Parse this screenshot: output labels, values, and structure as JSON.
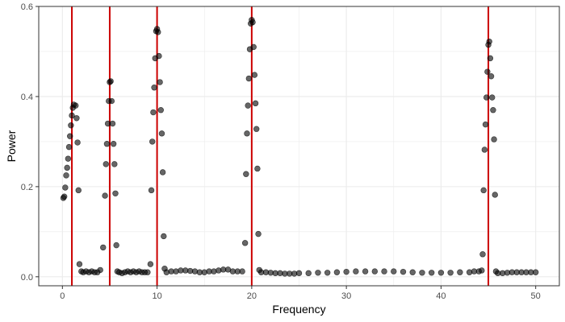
{
  "chart_data": {
    "type": "scatter",
    "title": "",
    "xlabel": "Frequency",
    "ylabel": "Power",
    "xlim": [
      -2.5,
      52.5
    ],
    "ylim": [
      -0.02,
      0.6
    ],
    "x_ticks": [
      0,
      10,
      20,
      30,
      40,
      50
    ],
    "y_ticks": [
      0.0,
      0.2,
      0.4,
      0.6
    ],
    "x_tick_labels": [
      "0",
      "10",
      "20",
      "30",
      "40",
      "50"
    ],
    "y_tick_labels": [
      "0.0",
      "0.2",
      "0.4",
      "0.6"
    ],
    "grid": true,
    "vlines": [
      1,
      5,
      10,
      20,
      45
    ],
    "vline_color": "#cc0000",
    "point_color": "#000000",
    "point_opacity": 0.6,
    "series": [
      {
        "x": [
          0.1,
          0.2,
          0.3,
          0.4,
          0.5,
          0.6,
          0.7,
          0.8,
          0.9,
          1.0,
          1.1,
          1.2,
          1.4,
          1.5,
          1.6,
          1.7,
          1.8,
          2.0,
          2.2,
          2.5,
          2.8,
          3.1,
          3.4,
          3.7,
          4.0,
          4.3,
          4.5,
          4.6,
          4.7,
          4.8,
          4.9,
          5.0,
          5.1,
          5.2,
          5.3,
          5.4,
          5.5,
          5.6,
          5.7,
          5.8,
          6.0,
          6.3,
          6.6,
          6.9,
          7.2,
          7.5,
          7.8,
          8.1,
          8.4,
          8.7,
          9.0,
          9.3,
          9.4,
          9.5,
          9.6,
          9.7,
          9.8,
          9.9,
          10.0,
          10.1,
          10.2,
          10.3,
          10.4,
          10.5,
          10.6,
          10.7,
          10.8,
          11.0,
          11.5,
          12.0,
          12.5,
          13.0,
          13.5,
          14.0,
          14.5,
          15.0,
          15.5,
          16.0,
          16.5,
          17.0,
          17.5,
          18.0,
          18.5,
          19.0,
          19.3,
          19.4,
          19.5,
          19.6,
          19.7,
          19.8,
          19.9,
          20.0,
          20.1,
          20.2,
          20.3,
          20.4,
          20.5,
          20.6,
          20.7,
          20.8,
          21.0,
          21.5,
          22.0,
          22.5,
          23.0,
          23.5,
          24.0,
          24.5,
          25.0,
          26.0,
          27.0,
          28.0,
          29.0,
          30.0,
          31.0,
          32.0,
          33.0,
          34.0,
          35.0,
          36.0,
          37.0,
          38.0,
          39.0,
          40.0,
          41.0,
          42.0,
          43.0,
          43.5,
          44.0,
          44.3,
          44.4,
          44.5,
          44.6,
          44.7,
          44.8,
          44.9,
          45.0,
          45.1,
          45.2,
          45.3,
          45.4,
          45.5,
          45.6,
          45.7,
          45.8,
          46.0,
          46.5,
          47.0,
          47.5,
          48.0,
          48.5,
          49.0,
          49.5,
          50.0
        ],
        "y": [
          0.175,
          0.178,
          0.198,
          0.225,
          0.242,
          0.262,
          0.288,
          0.312,
          0.336,
          0.358,
          0.375,
          0.382,
          0.38,
          0.352,
          0.298,
          0.192,
          0.028,
          0.012,
          0.01,
          0.012,
          0.01,
          0.012,
          0.01,
          0.01,
          0.015,
          0.065,
          0.18,
          0.25,
          0.295,
          0.34,
          0.39,
          0.432,
          0.434,
          0.39,
          0.34,
          0.295,
          0.25,
          0.185,
          0.07,
          0.012,
          0.01,
          0.008,
          0.01,
          0.012,
          0.01,
          0.012,
          0.01,
          0.012,
          0.01,
          0.01,
          0.01,
          0.028,
          0.192,
          0.3,
          0.365,
          0.42,
          0.485,
          0.545,
          0.55,
          0.543,
          0.49,
          0.432,
          0.37,
          0.318,
          0.232,
          0.09,
          0.018,
          0.01,
          0.012,
          0.012,
          0.014,
          0.014,
          0.013,
          0.012,
          0.01,
          0.01,
          0.012,
          0.012,
          0.014,
          0.016,
          0.016,
          0.012,
          0.012,
          0.012,
          0.075,
          0.228,
          0.318,
          0.38,
          0.44,
          0.505,
          0.562,
          0.57,
          0.565,
          0.51,
          0.448,
          0.385,
          0.328,
          0.24,
          0.095,
          0.015,
          0.01,
          0.01,
          0.009,
          0.008,
          0.008,
          0.007,
          0.007,
          0.007,
          0.008,
          0.008,
          0.009,
          0.009,
          0.01,
          0.011,
          0.012,
          0.012,
          0.012,
          0.012,
          0.012,
          0.011,
          0.01,
          0.009,
          0.009,
          0.009,
          0.009,
          0.01,
          0.01,
          0.012,
          0.012,
          0.014,
          0.05,
          0.192,
          0.282,
          0.338,
          0.398,
          0.455,
          0.515,
          0.522,
          0.485,
          0.445,
          0.398,
          0.37,
          0.305,
          0.182,
          0.012,
          0.008,
          0.008,
          0.009,
          0.01,
          0.01,
          0.01,
          0.01,
          0.01,
          0.01
        ]
      }
    ]
  }
}
